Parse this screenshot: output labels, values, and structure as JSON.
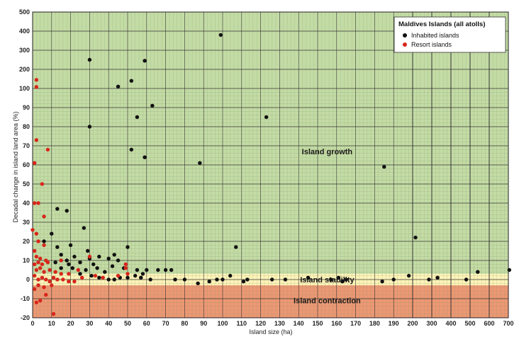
{
  "chart_data": {
    "type": "scatter",
    "title": "",
    "xlabel": "Island size (ha)",
    "ylabel": "Decadal change in island land area (%)",
    "x_ticks": [
      "0",
      "10",
      "20",
      "30",
      "40",
      "50",
      "60",
      "70",
      "80",
      "90",
      "100",
      "110",
      "120",
      "130",
      "140",
      "150",
      "160",
      "170",
      "180",
      "190",
      "200",
      "300",
      "400",
      "500",
      "600",
      "700"
    ],
    "y_ticks": [
      "-20",
      "-10",
      "0",
      "10",
      "20",
      "30",
      "40",
      "50",
      "60",
      "70",
      "80",
      "90",
      "100",
      "200",
      "300",
      "400",
      "500"
    ],
    "x_scale": "piecewise: linear 0-200 ha, then 100 ha per major cell 200-700 ha",
    "y_scale": "piecewise: linear -20 to 100 %, then 100 % per cell 100-500 %",
    "xlim": [
      0,
      700
    ],
    "ylim": [
      -20,
      500
    ],
    "grid": true,
    "legend_position": "top-right",
    "legend_title": "Maldives Islands (all atolls)",
    "zones": [
      {
        "label": "Island growth",
        "from": 3,
        "to": 500,
        "color": "#c3dba4"
      },
      {
        "label": "Island stability",
        "from": -3,
        "to": 3,
        "color": "#fdf3b8"
      },
      {
        "label": "Island contraction",
        "from": -20,
        "to": -3,
        "color": "#ec9873"
      }
    ],
    "series": [
      {
        "name": "Inhabited islands",
        "color": "#111111",
        "points": [
          [
            30,
            250
          ],
          [
            45,
            110
          ],
          [
            52,
            140
          ],
          [
            59,
            245
          ],
          [
            99,
            380
          ],
          [
            123,
            85
          ],
          [
            30,
            80
          ],
          [
            63,
            91
          ],
          [
            55,
            85
          ],
          [
            52,
            68
          ],
          [
            59,
            64
          ],
          [
            88,
            61
          ],
          [
            185,
            59
          ],
          [
            215,
            22
          ],
          [
            13,
            37
          ],
          [
            18,
            36
          ],
          [
            10,
            24
          ],
          [
            6,
            20
          ],
          [
            27,
            27
          ],
          [
            20,
            18
          ],
          [
            13,
            17
          ],
          [
            29,
            15
          ],
          [
            107,
            17
          ],
          [
            50,
            17
          ],
          [
            15,
            13
          ],
          [
            22,
            12
          ],
          [
            30,
            11
          ],
          [
            35,
            12
          ],
          [
            43,
            13
          ],
          [
            18,
            10
          ],
          [
            25,
            9
          ],
          [
            12,
            9
          ],
          [
            19,
            8
          ],
          [
            32,
            8
          ],
          [
            40,
            11
          ],
          [
            45,
            10
          ],
          [
            15,
            6
          ],
          [
            21,
            6
          ],
          [
            28,
            5
          ],
          [
            34,
            6
          ],
          [
            42,
            7
          ],
          [
            48,
            6
          ],
          [
            55,
            5
          ],
          [
            60,
            5
          ],
          [
            66,
            5
          ],
          [
            70,
            5
          ],
          [
            73,
            5
          ],
          [
            58,
            3
          ],
          [
            38,
            4
          ],
          [
            25,
            3
          ],
          [
            31,
            2
          ],
          [
            35,
            1
          ],
          [
            40,
            0
          ],
          [
            43,
            0
          ],
          [
            46,
            1
          ],
          [
            50,
            1
          ],
          [
            54,
            2
          ],
          [
            57,
            1
          ],
          [
            62,
            0
          ],
          [
            75,
            0
          ],
          [
            80,
            0
          ],
          [
            87,
            -2
          ],
          [
            93,
            -1
          ],
          [
            97,
            0
          ],
          [
            100,
            0
          ],
          [
            104,
            2
          ],
          [
            111,
            -1
          ],
          [
            113,
            0
          ],
          [
            126,
            0
          ],
          [
            133,
            0
          ],
          [
            145,
            1
          ],
          [
            157,
            0
          ],
          [
            161,
            1
          ],
          [
            163,
            -1
          ],
          [
            165,
            0
          ],
          [
            184,
            -1
          ],
          [
            190,
            0
          ],
          [
            198,
            2
          ],
          [
            285,
            0
          ],
          [
            330,
            1
          ],
          [
            480,
            0
          ],
          [
            540,
            4
          ],
          [
            705,
            5
          ]
        ]
      },
      {
        "name": "Resort islands",
        "color": "#d8261b",
        "points": [
          [
            2,
            145
          ],
          [
            2,
            108
          ],
          [
            2,
            73
          ],
          [
            8,
            68
          ],
          [
            1,
            61
          ],
          [
            5,
            50
          ],
          [
            1,
            40
          ],
          [
            3,
            40
          ],
          [
            6,
            33
          ],
          [
            0,
            26
          ],
          [
            2,
            24
          ],
          [
            3,
            20
          ],
          [
            6,
            18
          ],
          [
            1,
            15
          ],
          [
            2,
            12
          ],
          [
            4,
            11
          ],
          [
            7,
            10
          ],
          [
            3,
            9
          ],
          [
            1,
            8
          ],
          [
            5,
            8
          ],
          [
            8,
            9
          ],
          [
            4,
            6
          ],
          [
            2,
            5
          ],
          [
            6,
            4
          ],
          [
            9,
            5
          ],
          [
            12,
            4
          ],
          [
            15,
            3
          ],
          [
            19,
            3
          ],
          [
            24,
            5
          ],
          [
            30,
            12
          ],
          [
            49,
            8
          ],
          [
            49,
            6
          ],
          [
            15,
            10
          ],
          [
            1,
            2
          ],
          [
            3,
            0
          ],
          [
            5,
            1
          ],
          [
            7,
            0
          ],
          [
            9,
            -1
          ],
          [
            11,
            1
          ],
          [
            13,
            0
          ],
          [
            16,
            0
          ],
          [
            19,
            -1
          ],
          [
            3,
            -3
          ],
          [
            6,
            -4
          ],
          [
            10,
            -3
          ],
          [
            1,
            -5
          ],
          [
            2,
            -12
          ],
          [
            4,
            -11
          ],
          [
            7,
            -8
          ],
          [
            11,
            -18
          ],
          [
            22,
            -1
          ],
          [
            26,
            1
          ],
          [
            33,
            2
          ],
          [
            37,
            1
          ],
          [
            45,
            2
          ],
          [
            50,
            3
          ]
        ]
      }
    ]
  }
}
